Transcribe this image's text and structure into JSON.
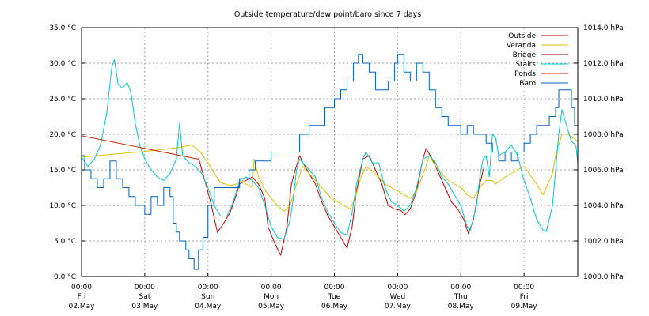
{
  "chart_data": {
    "type": "line",
    "title": "Outside temperature/dew point/baro since 7 days",
    "y_left": {
      "min": 0,
      "max": 35,
      "ticks": [
        "0.0 °C",
        "5.0 °C",
        "10.0 °C",
        "15.0 °C",
        "20.0 °C",
        "25.0 °C",
        "30.0 °C",
        "35.0 °C"
      ]
    },
    "y_right": {
      "min": 1000,
      "max": 1014,
      "ticks": [
        "1000.0 hPa",
        "1002.0 hPa",
        "1004.0 hPa",
        "1006.0 hPa",
        "1008.0 hPa",
        "1010.0 hPa",
        "1012.0 hPa",
        "1014.0 hPa"
      ]
    },
    "x_axis": {
      "unit": "days since Fri 02.May 00:00",
      "range": [
        0,
        7.85
      ],
      "ticks": [
        {
          "t": 0,
          "time": "00:00",
          "day": "Fri",
          "date": "02.May"
        },
        {
          "t": 1,
          "time": "00:00",
          "day": "Sat",
          "date": "03.May"
        },
        {
          "t": 2,
          "time": "00:00",
          "day": "Sun",
          "date": "04.May"
        },
        {
          "t": 3,
          "time": "00:00",
          "day": "Mon",
          "date": "05.May"
        },
        {
          "t": 4,
          "time": "00:00",
          "day": "Tue",
          "date": "06.May"
        },
        {
          "t": 5,
          "time": "00:00",
          "day": "Wed",
          "date": "07.May"
        },
        {
          "t": 6,
          "time": "00:00",
          "day": "Thu",
          "date": "08.May"
        },
        {
          "t": 7,
          "time": "00:00",
          "day": "Fri",
          "date": "09.May"
        }
      ]
    },
    "grid": true,
    "legend_position": "top-right",
    "series": [
      {
        "name": "Outside",
        "color": "#cc0000",
        "axis": "left",
        "points": [
          [
            1.85,
            16.7
          ],
          [
            1.95,
            13.5
          ],
          [
            2.05,
            10.2
          ],
          [
            2.15,
            6.2
          ],
          [
            2.25,
            7.5
          ],
          [
            2.35,
            9.0
          ],
          [
            2.45,
            11.5
          ],
          [
            2.5,
            13.0
          ],
          [
            2.6,
            13.5
          ],
          [
            2.7,
            14.0
          ],
          [
            2.8,
            13.0
          ],
          [
            2.9,
            11.0
          ],
          [
            2.95,
            7.0
          ],
          [
            3.05,
            4.8
          ],
          [
            3.15,
            3.0
          ],
          [
            3.25,
            7.0
          ],
          [
            3.32,
            13.0
          ],
          [
            3.38,
            15.0
          ],
          [
            3.45,
            17.0
          ],
          [
            3.5,
            16.0
          ],
          [
            3.6,
            14.5
          ],
          [
            3.7,
            13.0
          ],
          [
            3.8,
            10.5
          ],
          [
            3.9,
            8.5
          ],
          [
            4.0,
            7.0
          ],
          [
            4.1,
            5.5
          ],
          [
            4.2,
            4.0
          ],
          [
            4.28,
            7.0
          ],
          [
            4.35,
            12.0
          ],
          [
            4.45,
            16.5
          ],
          [
            4.55,
            17.0
          ],
          [
            4.65,
            15.0
          ],
          [
            4.75,
            13.0
          ],
          [
            4.85,
            10.0
          ],
          [
            4.95,
            9.5
          ],
          [
            5.05,
            9.3
          ],
          [
            5.12,
            8.7
          ],
          [
            5.2,
            9.5
          ],
          [
            5.3,
            12.0
          ],
          [
            5.4,
            16.5
          ],
          [
            5.45,
            18.0
          ],
          [
            5.55,
            16.5
          ],
          [
            5.65,
            14.5
          ],
          [
            5.75,
            12.5
          ],
          [
            5.85,
            10.5
          ],
          [
            5.95,
            9.5
          ],
          [
            6.05,
            8.0
          ],
          [
            6.12,
            6.0
          ],
          [
            6.2,
            8.0
          ],
          [
            6.3,
            13.0
          ],
          [
            6.37,
            15.5
          ]
        ]
      },
      {
        "name": "Veranda",
        "color": "#d6c200",
        "axis": "left",
        "points": [
          [
            0,
            16.8
          ],
          [
            0.5,
            17.2
          ],
          [
            1.0,
            17.6
          ],
          [
            1.5,
            18.1
          ],
          [
            1.75,
            18.5
          ],
          [
            1.88,
            17.5
          ],
          [
            2.0,
            16.0
          ],
          [
            2.1,
            14.5
          ],
          [
            2.2,
            13.2
          ],
          [
            2.35,
            12.8
          ],
          [
            2.45,
            13.0
          ],
          [
            2.55,
            13.5
          ],
          [
            2.6,
            13.0
          ],
          [
            2.7,
            12.5
          ],
          [
            2.73,
            16.5
          ],
          [
            2.8,
            14.0
          ],
          [
            2.9,
            12.2
          ],
          [
            3.0,
            11.0
          ],
          [
            3.1,
            10.0
          ],
          [
            3.2,
            9.2
          ],
          [
            3.3,
            10.0
          ],
          [
            3.4,
            13.0
          ],
          [
            3.5,
            15.5
          ],
          [
            3.55,
            15.0
          ],
          [
            3.65,
            14.0
          ],
          [
            3.75,
            13.0
          ],
          [
            3.85,
            12.0
          ],
          [
            3.95,
            11.0
          ],
          [
            4.05,
            10.5
          ],
          [
            4.15,
            10.0
          ],
          [
            4.25,
            9.5
          ],
          [
            4.33,
            11.0
          ],
          [
            4.4,
            13.5
          ],
          [
            4.5,
            15.5
          ],
          [
            4.6,
            14.8
          ],
          [
            4.7,
            14.0
          ],
          [
            4.8,
            13.0
          ],
          [
            4.9,
            12.5
          ],
          [
            5.0,
            12.0
          ],
          [
            5.1,
            11.5
          ],
          [
            5.2,
            11.0
          ],
          [
            5.3,
            12.0
          ],
          [
            5.45,
            15.5
          ],
          [
            5.5,
            17.0
          ],
          [
            5.6,
            15.5
          ],
          [
            5.7,
            14.5
          ],
          [
            5.8,
            13.5
          ],
          [
            5.9,
            13.0
          ],
          [
            6.0,
            12.5
          ],
          [
            6.1,
            11.5
          ],
          [
            6.2,
            11.0
          ],
          [
            6.3,
            12.5
          ],
          [
            6.4,
            13.5
          ],
          [
            6.5,
            13.5
          ],
          [
            6.55,
            13.0
          ],
          [
            6.7,
            14.0
          ],
          [
            7.0,
            15.5
          ],
          [
            7.2,
            13.0
          ],
          [
            7.3,
            11.5
          ],
          [
            7.45,
            14.5
          ],
          [
            7.5,
            17.0
          ],
          [
            7.6,
            20.0
          ],
          [
            7.7,
            20.0
          ],
          [
            7.85,
            19.0
          ]
        ]
      },
      {
        "name": "Bridge",
        "color": "#8b0000",
        "axis": "left",
        "points": []
      },
      {
        "name": "Stairs",
        "color": "#00c8d0",
        "axis": "left",
        "points": [
          [
            0,
            16.8
          ],
          [
            0.1,
            15.5
          ],
          [
            0.2,
            16.5
          ],
          [
            0.3,
            18.5
          ],
          [
            0.4,
            23.0
          ],
          [
            0.48,
            29.5
          ],
          [
            0.52,
            30.5
          ],
          [
            0.58,
            27.0
          ],
          [
            0.65,
            26.5
          ],
          [
            0.72,
            27.3
          ],
          [
            0.78,
            26.0
          ],
          [
            0.85,
            21.5
          ],
          [
            0.92,
            18.5
          ],
          [
            1.0,
            16.5
          ],
          [
            1.1,
            15.0
          ],
          [
            1.2,
            14.0
          ],
          [
            1.3,
            13.5
          ],
          [
            1.4,
            14.5
          ],
          [
            1.5,
            16.5
          ],
          [
            1.55,
            21.5
          ],
          [
            1.6,
            17.0
          ],
          [
            1.7,
            16.0
          ],
          [
            1.8,
            15.5
          ],
          [
            1.9,
            14.5
          ],
          [
            2.0,
            12.5
          ],
          [
            2.1,
            10.0
          ],
          [
            2.2,
            8.5
          ],
          [
            2.3,
            8.5
          ],
          [
            2.4,
            10.5
          ],
          [
            2.5,
            13.5
          ],
          [
            2.6,
            14.0
          ],
          [
            2.7,
            13.5
          ],
          [
            2.8,
            12.5
          ],
          [
            2.9,
            10.0
          ],
          [
            3.0,
            7.0
          ],
          [
            3.1,
            5.5
          ],
          [
            3.2,
            5.2
          ],
          [
            3.3,
            8.0
          ],
          [
            3.35,
            11.0
          ],
          [
            3.4,
            15.0
          ],
          [
            3.45,
            16.5
          ],
          [
            3.5,
            16.0
          ],
          [
            3.6,
            15.0
          ],
          [
            3.7,
            14.0
          ],
          [
            3.8,
            11.0
          ],
          [
            3.9,
            9.0
          ],
          [
            4.0,
            7.5
          ],
          [
            4.1,
            6.2
          ],
          [
            4.2,
            5.8
          ],
          [
            4.28,
            9.0
          ],
          [
            4.35,
            13.0
          ],
          [
            4.45,
            16.5
          ],
          [
            4.5,
            17.5
          ],
          [
            4.6,
            16.0
          ],
          [
            4.7,
            16.0
          ],
          [
            4.8,
            12.5
          ],
          [
            4.9,
            10.5
          ],
          [
            5.0,
            10.0
          ],
          [
            5.1,
            9.2
          ],
          [
            5.2,
            10.0
          ],
          [
            5.3,
            12.5
          ],
          [
            5.4,
            16.5
          ],
          [
            5.5,
            17.0
          ],
          [
            5.6,
            16.0
          ],
          [
            5.7,
            14.0
          ],
          [
            5.8,
            13.0
          ],
          [
            5.9,
            11.5
          ],
          [
            6.0,
            10.0
          ],
          [
            6.1,
            7.0
          ],
          [
            6.15,
            6.5
          ],
          [
            6.25,
            10.0
          ],
          [
            6.3,
            14.0
          ],
          [
            6.35,
            16.5
          ],
          [
            6.4,
            17.0
          ],
          [
            6.45,
            14.0
          ],
          [
            6.5,
            20.0
          ],
          [
            6.55,
            19.5
          ],
          [
            6.6,
            17.0
          ],
          [
            6.7,
            17.5
          ],
          [
            6.8,
            18.5
          ],
          [
            6.9,
            17.0
          ],
          [
            7.0,
            13.5
          ],
          [
            7.1,
            11.0
          ],
          [
            7.2,
            8.0
          ],
          [
            7.3,
            6.5
          ],
          [
            7.35,
            6.3
          ],
          [
            7.45,
            10.0
          ],
          [
            7.5,
            15.0
          ],
          [
            7.55,
            20.0
          ],
          [
            7.6,
            23.5
          ],
          [
            7.68,
            21.0
          ],
          [
            7.75,
            19.0
          ],
          [
            7.82,
            18.5
          ],
          [
            7.85,
            16.0
          ]
        ]
      },
      {
        "name": "Ponds",
        "color": "#cc2200",
        "axis": "left",
        "points": [
          [
            0,
            19.8
          ],
          [
            1.85,
            16.5
          ]
        ]
      },
      {
        "name": "Baro",
        "color": "#0060c0",
        "axis": "right",
        "points": [
          [
            0,
            1006.8
          ],
          [
            0.05,
            1006.0
          ],
          [
            0.15,
            1005.5
          ],
          [
            0.25,
            1005.0
          ],
          [
            0.35,
            1005.5
          ],
          [
            0.45,
            1006.5
          ],
          [
            0.55,
            1005.5
          ],
          [
            0.65,
            1005.0
          ],
          [
            0.75,
            1004.5
          ],
          [
            0.85,
            1004.0
          ],
          [
            1.0,
            1003.5
          ],
          [
            1.1,
            1004.5
          ],
          [
            1.2,
            1004.0
          ],
          [
            1.3,
            1005.0
          ],
          [
            1.4,
            1004.5
          ],
          [
            1.45,
            1003.0
          ],
          [
            1.5,
            1002.5
          ],
          [
            1.55,
            1002.0
          ],
          [
            1.65,
            1001.5
          ],
          [
            1.7,
            1001.0
          ],
          [
            1.78,
            1000.4
          ],
          [
            1.85,
            1001.5
          ],
          [
            1.92,
            1002.2
          ],
          [
            2.0,
            1004.0
          ],
          [
            2.1,
            1005.0
          ],
          [
            2.3,
            1005.0
          ],
          [
            2.5,
            1005.5
          ],
          [
            2.65,
            1006.0
          ],
          [
            2.75,
            1006.5
          ],
          [
            2.85,
            1006.5
          ],
          [
            3.0,
            1007.0
          ],
          [
            3.1,
            1007.0
          ],
          [
            3.25,
            1007.0
          ],
          [
            3.35,
            1007.0
          ],
          [
            3.45,
            1008.0
          ],
          [
            3.6,
            1008.5
          ],
          [
            3.75,
            1008.5
          ],
          [
            3.85,
            1009.5
          ],
          [
            4.0,
            1010.0
          ],
          [
            4.1,
            1010.5
          ],
          [
            4.2,
            1011.0
          ],
          [
            4.3,
            1012.0
          ],
          [
            4.38,
            1012.5
          ],
          [
            4.45,
            1012.0
          ],
          [
            4.55,
            1011.5
          ],
          [
            4.65,
            1010.5
          ],
          [
            4.75,
            1010.5
          ],
          [
            4.85,
            1011.0
          ],
          [
            4.95,
            1012.0
          ],
          [
            5.0,
            1012.5
          ],
          [
            5.1,
            1011.5
          ],
          [
            5.2,
            1011.0
          ],
          [
            5.3,
            1012.0
          ],
          [
            5.4,
            1011.5
          ],
          [
            5.5,
            1010.5
          ],
          [
            5.6,
            1009.5
          ],
          [
            5.7,
            1009.0
          ],
          [
            5.8,
            1008.5
          ],
          [
            5.9,
            1008.5
          ],
          [
            6.0,
            1008.0
          ],
          [
            6.1,
            1008.5
          ],
          [
            6.2,
            1008.0
          ],
          [
            6.3,
            1008.0
          ],
          [
            6.4,
            1007.5
          ],
          [
            6.5,
            1007.0
          ],
          [
            6.6,
            1006.5
          ],
          [
            6.7,
            1007.0
          ],
          [
            6.8,
            1006.5
          ],
          [
            6.9,
            1007.0
          ],
          [
            7.0,
            1007.5
          ],
          [
            7.1,
            1008.0
          ],
          [
            7.2,
            1008.5
          ],
          [
            7.3,
            1008.5
          ],
          [
            7.4,
            1009.0
          ],
          [
            7.5,
            1009.5
          ],
          [
            7.55,
            1010.5
          ],
          [
            7.65,
            1010.5
          ],
          [
            7.75,
            1009.5
          ],
          [
            7.8,
            1008.5
          ],
          [
            7.85,
            1010.0
          ]
        ]
      }
    ]
  }
}
